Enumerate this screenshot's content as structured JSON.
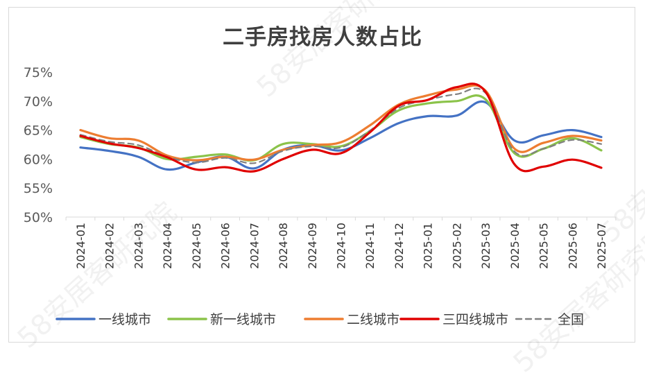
{
  "chart_data": {
    "type": "line",
    "title": "二手房找房人数占比",
    "xlabel": "",
    "ylabel": "",
    "ylim": [
      50,
      75
    ],
    "yticks": [
      "50%",
      "55%",
      "60%",
      "65%",
      "70%",
      "75%"
    ],
    "grid": false,
    "legend_position": "bottom",
    "categories": [
      "2024-01",
      "2024-02",
      "2024-03",
      "2024-04",
      "2024-05",
      "2024-06",
      "2024-07",
      "2024-08",
      "2024-09",
      "2024-10",
      "2024-11",
      "2024-12",
      "2025-01",
      "2025-02",
      "2025-03",
      "2025-04",
      "2025-05",
      "2025-06",
      "2025-07"
    ],
    "series": [
      {
        "name": "一线城市",
        "color": "#4472C4",
        "dash": false,
        "values": [
          62.0,
          61.4,
          60.4,
          58.2,
          59.4,
          60.4,
          58.4,
          61.6,
          62.4,
          61.5,
          63.6,
          66.2,
          67.4,
          67.5,
          69.8,
          63.2,
          64.1,
          65.0,
          63.8
        ]
      },
      {
        "name": "新一线城市",
        "color": "#8BC34A",
        "dash": false,
        "values": [
          63.8,
          62.6,
          62.0,
          60.0,
          60.4,
          60.8,
          59.8,
          62.6,
          62.6,
          62.2,
          64.8,
          68.4,
          69.6,
          70.0,
          70.3,
          61.0,
          61.8,
          63.6,
          61.5
        ]
      },
      {
        "name": "二线城市",
        "color": "#ED7D31",
        "dash": false,
        "values": [
          65.0,
          63.6,
          63.2,
          60.6,
          59.8,
          60.4,
          59.9,
          61.6,
          62.4,
          62.9,
          65.8,
          69.4,
          71.0,
          72.0,
          71.8,
          61.8,
          62.8,
          64.0,
          63.2
        ]
      },
      {
        "name": "三四线城市",
        "color": "#E00000",
        "dash": false,
        "values": [
          64.0,
          62.7,
          61.9,
          60.3,
          58.2,
          58.6,
          57.9,
          60.0,
          61.6,
          61.0,
          64.6,
          69.2,
          70.2,
          72.4,
          71.6,
          59.1,
          58.7,
          59.9,
          58.5
        ]
      },
      {
        "name": "全国",
        "color": "#7F7F7F",
        "dash": true,
        "values": [
          64.2,
          63.0,
          62.4,
          60.4,
          59.4,
          60.2,
          59.3,
          61.4,
          62.2,
          62.0,
          64.9,
          68.8,
          70.2,
          71.2,
          71.4,
          61.3,
          61.8,
          63.3,
          62.6
        ]
      }
    ]
  },
  "watermarks": [
    "58安居客研究院",
    "58安居客研究院",
    "58安居客研究院",
    "58安居客研"
  ]
}
